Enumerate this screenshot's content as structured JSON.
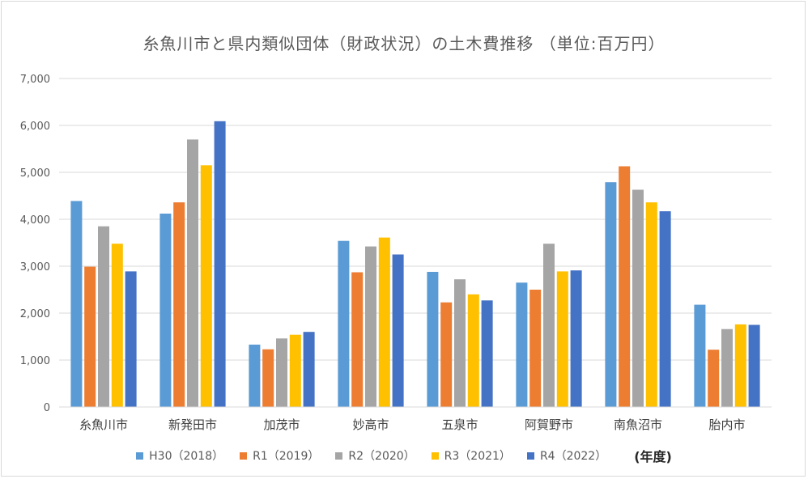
{
  "chart_data": {
    "type": "bar",
    "title": "糸魚川市と県内類似団体（財政状況）の土木費推移 （単位:百万円）",
    "categories": [
      "糸魚川市",
      "新発田市",
      "加茂市",
      "妙高市",
      "五泉市",
      "阿賀野市",
      "南魚沼市",
      "胎内市"
    ],
    "ylim": [
      0,
      7000
    ],
    "yticks": [
      "0",
      "1,000",
      "2,000",
      "3,000",
      "4,000",
      "5,000",
      "6,000",
      "7,000"
    ],
    "ytick_values": [
      0,
      1000,
      2000,
      3000,
      4000,
      5000,
      6000,
      7000
    ],
    "grid": true,
    "legend_position": "bottom",
    "legend_note": "(年度)",
    "series": [
      {
        "name": "H30（2018）",
        "color": "#5b9bd5",
        "values": [
          4390,
          4120,
          1330,
          3540,
          2880,
          2650,
          4790,
          2180
        ]
      },
      {
        "name": "R1（2019）",
        "color": "#ed7d31",
        "values": [
          2990,
          4360,
          1230,
          2870,
          2230,
          2500,
          5130,
          1220
        ]
      },
      {
        "name": "R2（2020）",
        "color": "#a5a5a5",
        "values": [
          3850,
          5700,
          1460,
          3420,
          2720,
          3480,
          4630,
          1660
        ]
      },
      {
        "name": "R3（2021）",
        "color": "#ffc000",
        "values": [
          3480,
          5150,
          1540,
          3610,
          2400,
          2890,
          4360,
          1760
        ]
      },
      {
        "name": "R4（2022）",
        "color": "#4472c4",
        "values": [
          2890,
          6090,
          1600,
          3250,
          2270,
          2910,
          4170,
          1750
        ]
      }
    ]
  }
}
